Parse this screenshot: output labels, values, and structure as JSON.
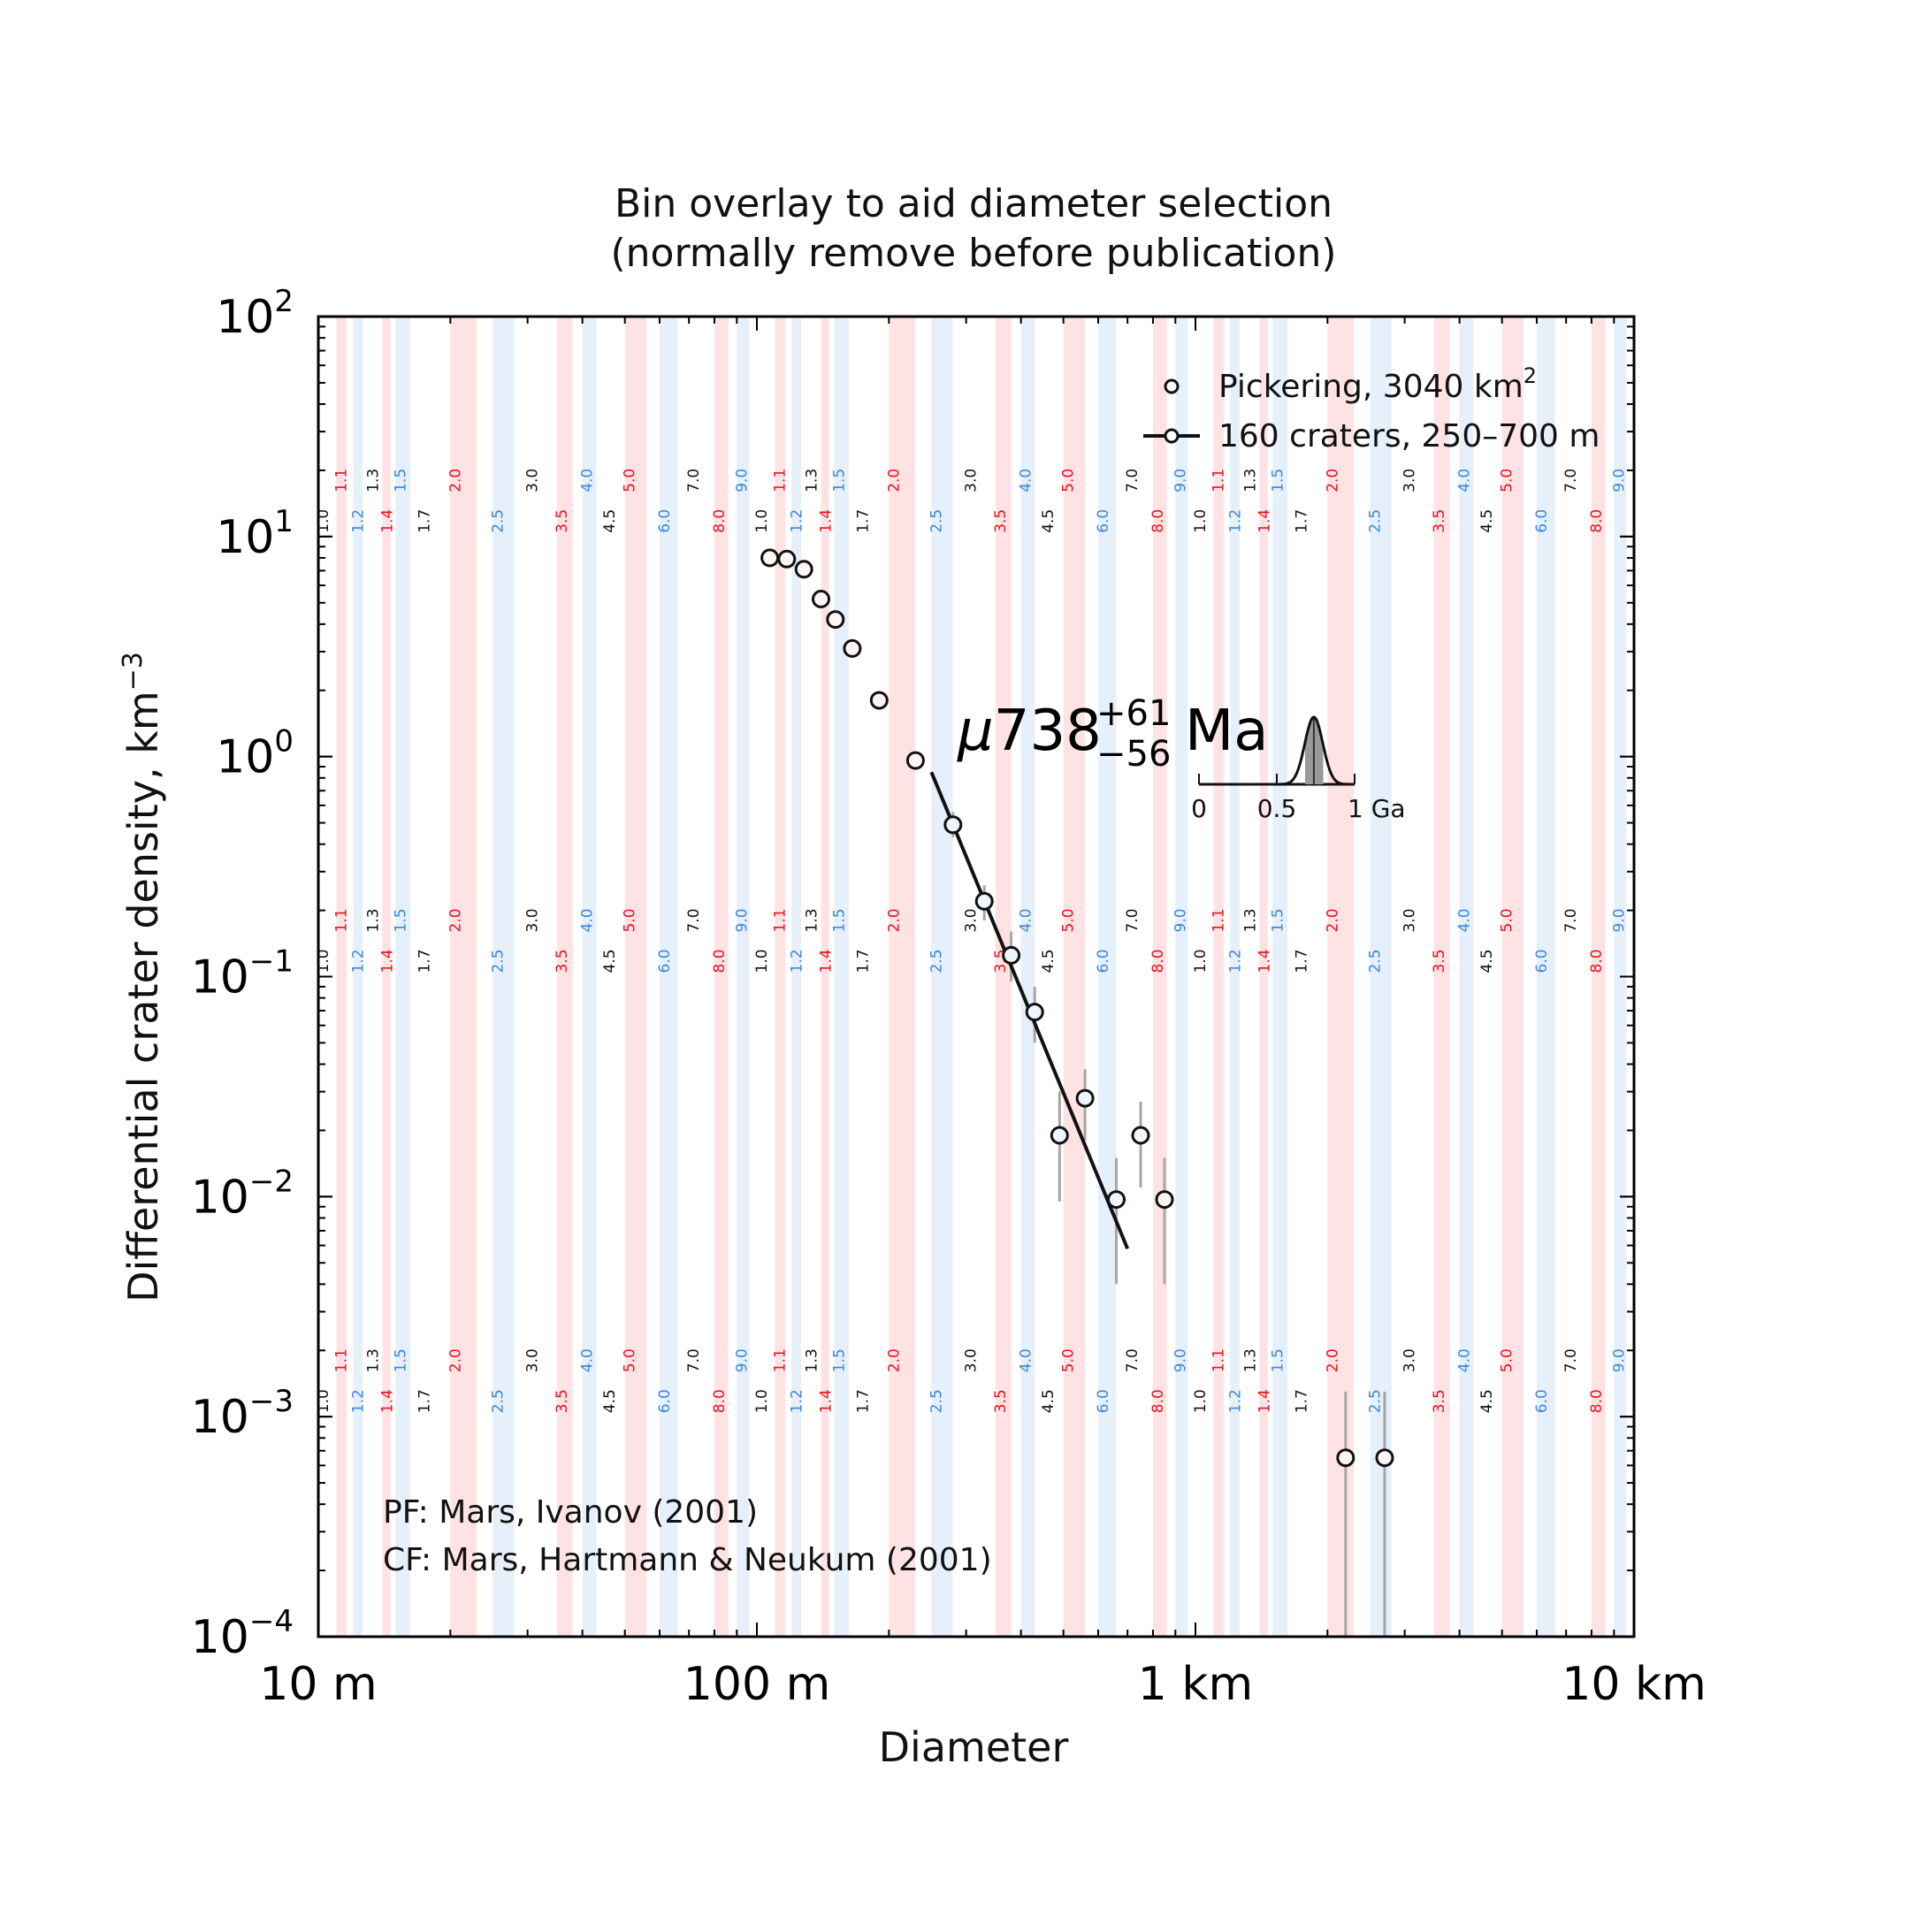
{
  "chart_data": {
    "type": "scatter",
    "title": "Bin overlay to aid diameter selection\n(normally remove before publication)",
    "title_lines": [
      "Bin overlay to aid diameter selection",
      "(normally remove before publication)"
    ],
    "xlabel": "Diameter",
    "ylabel": "Differential crater density, km",
    "ylabel_exponent": "−3",
    "x_scale": "log",
    "y_scale": "log",
    "xlim_km": [
      0.01,
      10
    ],
    "ylim": [
      0.0001,
      100
    ],
    "x_ticks": [
      {
        "value_km": 0.01,
        "label": "10 m"
      },
      {
        "value_km": 0.1,
        "label": "100 m"
      },
      {
        "value_km": 1,
        "label": "1 km"
      },
      {
        "value_km": 10,
        "label": "10 km"
      }
    ],
    "y_ticks": [
      {
        "value": 100,
        "base": "10",
        "exp": "2"
      },
      {
        "value": 10,
        "base": "10",
        "exp": "1"
      },
      {
        "value": 1,
        "base": "10",
        "exp": "0"
      },
      {
        "value": 0.1,
        "base": "10",
        "exp": "−1"
      },
      {
        "value": 0.01,
        "base": "10",
        "exp": "−2"
      },
      {
        "value": 0.001,
        "base": "10",
        "exp": "−3"
      },
      {
        "value": 0.0001,
        "base": "10",
        "exp": "−4"
      }
    ],
    "legend": {
      "placement": "top-right",
      "entries": [
        {
          "marker": "circle",
          "label": "Pickering, 3040 km",
          "label_sup": "2"
        },
        {
          "marker": "line-circle",
          "label": "160 craters, 250–700 m"
        }
      ]
    },
    "series": [
      {
        "name": "Pickering, 3040 km²",
        "points": [
          {
            "x_km": 0.107,
            "y": 8.0
          },
          {
            "x_km": 0.117,
            "y": 7.9
          },
          {
            "x_km": 0.128,
            "y": 7.1
          },
          {
            "x_km": 0.14,
            "y": 5.2
          },
          {
            "x_km": 0.151,
            "y": 4.2
          },
          {
            "x_km": 0.165,
            "y": 3.1
          },
          {
            "x_km": 0.19,
            "y": 1.8
          },
          {
            "x_km": 0.23,
            "y": 0.96
          },
          {
            "x_km": 0.28,
            "y": 0.49,
            "err": [
              0.43,
              0.56
            ]
          },
          {
            "x_km": 0.33,
            "y": 0.22,
            "err": [
              0.18,
              0.26
            ]
          },
          {
            "x_km": 0.38,
            "y": 0.125,
            "err": [
              0.095,
              0.16
            ]
          },
          {
            "x_km": 0.43,
            "y": 0.069,
            "err": [
              0.05,
              0.09
            ]
          },
          {
            "x_km": 0.49,
            "y": 0.019,
            "err": [
              0.0095,
              0.03
            ]
          },
          {
            "x_km": 0.56,
            "y": 0.028,
            "err": [
              0.018,
              0.038
            ]
          },
          {
            "x_km": 0.66,
            "y": 0.0097,
            "err": [
              0.004,
              0.015
            ]
          },
          {
            "x_km": 0.75,
            "y": 0.019,
            "err": [
              0.011,
              0.027
            ]
          },
          {
            "x_km": 0.85,
            "y": 0.0097,
            "err": [
              0.004,
              0.015
            ]
          },
          {
            "x_km": 2.2,
            "y": 0.00065,
            "err": [
              0.0001,
              0.0013
            ]
          },
          {
            "x_km": 2.7,
            "y": 0.00065,
            "err": [
              0.0001,
              0.0013
            ]
          }
        ]
      },
      {
        "name": "160 craters, 250–700 m",
        "type": "line",
        "x_km": [
          0.25,
          0.7
        ],
        "y": [
          0.85,
          0.0058
        ]
      }
    ],
    "age": {
      "prefix": "μ",
      "value": "738",
      "plus": "+61",
      "minus": "−56",
      "unit": "Ma",
      "inset_ticks": [
        "0",
        "0.5",
        "1 Ga"
      ],
      "pdf_peak_ga": 0.738,
      "pdf_sigma_ga": 0.058
    },
    "notes": [
      "PF: Mars, Ivanov (2001)",
      "CF: Mars, Hartmann & Neukum (2001)"
    ],
    "bin_overlay": {
      "labels": [
        "1.0",
        "1.1",
        "1.2",
        "1.3",
        "1.4",
        "1.5",
        "1.7",
        "2.0",
        "2.5",
        "3.0",
        "3.5",
        "4.0",
        "4.5",
        "5.0",
        "6.0",
        "7.0",
        "8.0",
        "9.0"
      ],
      "values": [
        1.0,
        1.1,
        1.2,
        1.3,
        1.4,
        1.5,
        1.7,
        2.0,
        2.5,
        3.0,
        3.5,
        4.0,
        4.5,
        5.0,
        6.0,
        7.0,
        8.0,
        9.0
      ],
      "color_groups": {
        "red": [
          1,
          4,
          7,
          10,
          13,
          16
        ],
        "blue": [
          2,
          5,
          8,
          11,
          14,
          17
        ],
        "black": [
          0,
          3,
          6,
          9,
          12,
          15
        ]
      },
      "colors": {
        "red": "#e8141c",
        "blue": "#3b87e0",
        "black": "#111111",
        "red_band": "#ffe2e4",
        "blue_band": "#e6f0fb"
      }
    },
    "grid": false
  }
}
